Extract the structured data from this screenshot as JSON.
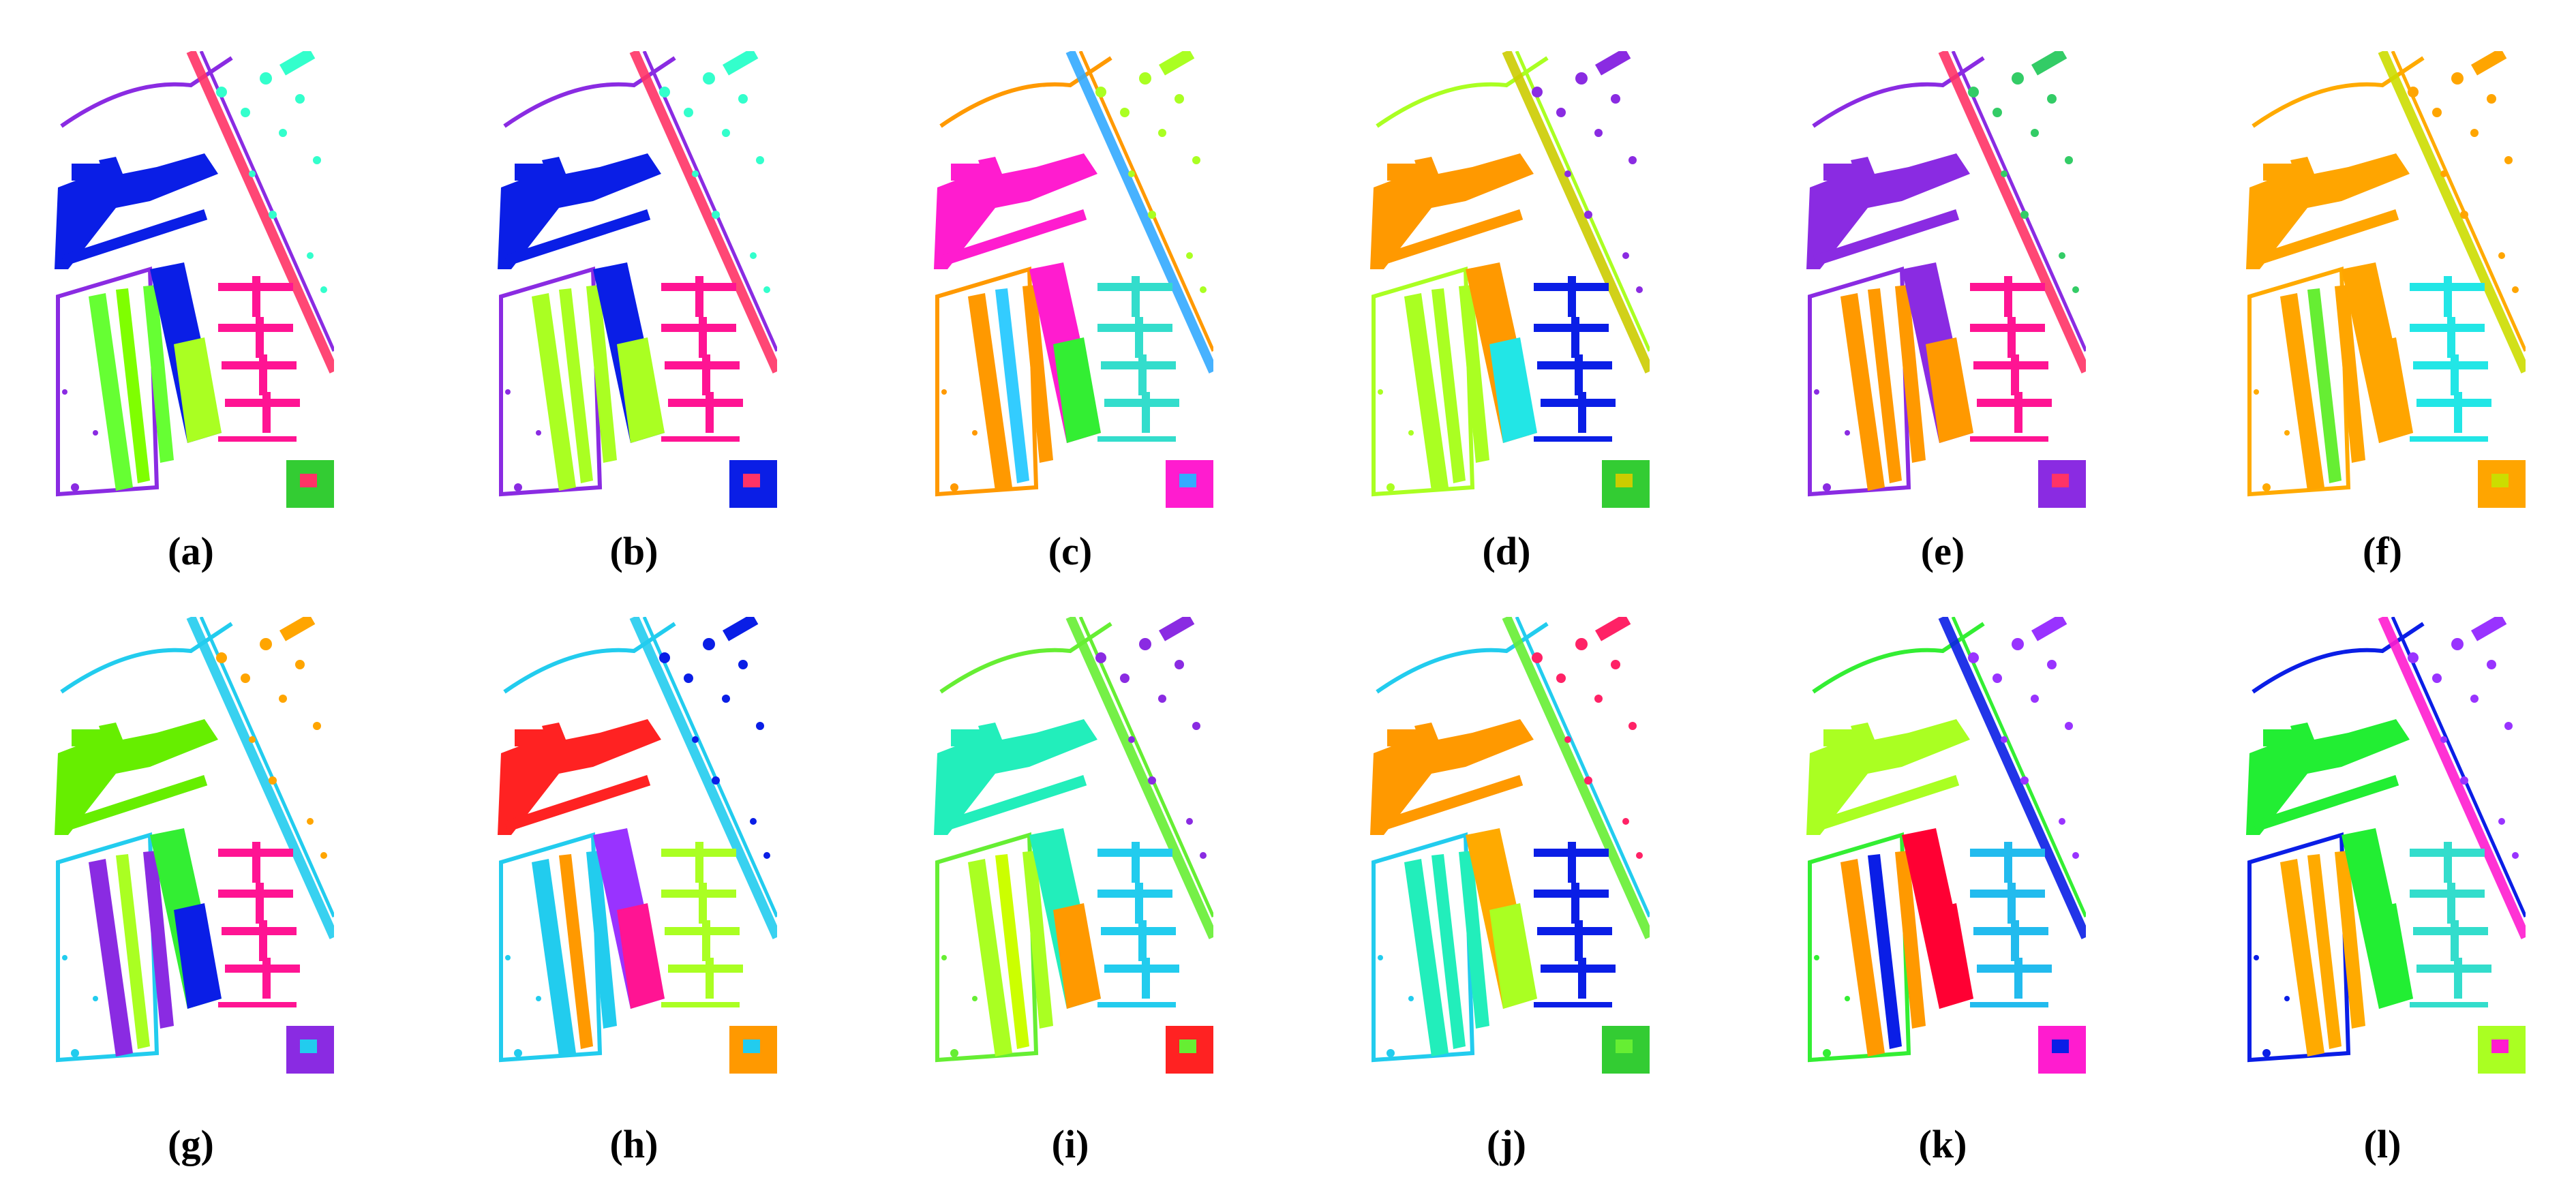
{
  "panels": [
    {
      "label": "a",
      "colors": {
        "outline": "#8a2be2",
        "building": "#0a1ee6",
        "lawn": "#7fff00",
        "strip": "#66ff33",
        "tall": "#0a1ee6",
        "lower": "#aaff22",
        "piers": "#ff1493",
        "corner": "#33cc33",
        "diag": "#ff3366",
        "dots": "#33ffcc"
      }
    },
    {
      "label": "b",
      "colors": {
        "outline": "#8a2be2",
        "building": "#0a1ee6",
        "lawn": "#aaff22",
        "strip": "#aaff22",
        "tall": "#0a1ee6",
        "lower": "#aaff22",
        "piers": "#ff1493",
        "corner": "#0a1ee6",
        "diag": "#ff3366",
        "dots": "#33ffcc"
      }
    },
    {
      "label": "c",
      "colors": {
        "outline": "#ff9900",
        "building": "#ff1ccf",
        "lawn": "#33ccff",
        "strip": "#ff9900",
        "tall": "#ff1ccf",
        "lower": "#33ee33",
        "piers": "#33ddcc",
        "corner": "#ff1ccf",
        "diag": "#33aaff",
        "dots": "#aaff22"
      }
    },
    {
      "label": "d",
      "colors": {
        "outline": "#aaff22",
        "building": "#ff9900",
        "lawn": "#aaff22",
        "strip": "#aaff22",
        "tall": "#ff9900",
        "lower": "#22e6e6",
        "piers": "#0a1ee6",
        "corner": "#33cc33",
        "diag": "#cccc00",
        "dots": "#8a2be2"
      }
    },
    {
      "label": "e",
      "colors": {
        "outline": "#8a2be2",
        "building": "#8a2be2",
        "lawn": "#ff9900",
        "strip": "#ff9900",
        "tall": "#8a2be2",
        "lower": "#ff9900",
        "piers": "#ff1493",
        "corner": "#8a2be2",
        "diag": "#ff3366",
        "dots": "#33cc66"
      }
    },
    {
      "label": "f",
      "colors": {
        "outline": "#ffaa00",
        "building": "#ffa500",
        "lawn": "#66ee33",
        "strip": "#ffa500",
        "tall": "#ffa500",
        "lower": "#ffa500",
        "piers": "#22e6e6",
        "corner": "#ffa500",
        "diag": "#ccdd00",
        "dots": "#ffa500"
      }
    },
    {
      "label": "g",
      "colors": {
        "outline": "#22ccee",
        "building": "#66ee00",
        "lawn": "#aaff22",
        "strip": "#8a2be2",
        "tall": "#33ee33",
        "lower": "#0a1ee6",
        "piers": "#ff1493",
        "corner": "#8a2be2",
        "diag": "#22ccee",
        "dots": "#ffa500"
      }
    },
    {
      "label": "h",
      "colors": {
        "outline": "#22ccee",
        "building": "#ff2222",
        "lawn": "#ff9900",
        "strip": "#22ccee",
        "tall": "#9933ff",
        "lower": "#ff1493",
        "piers": "#aaff22",
        "corner": "#ff9900",
        "diag": "#22ccee",
        "dots": "#0a1ee6"
      }
    },
    {
      "label": "i",
      "colors": {
        "outline": "#66ee33",
        "building": "#22eebb",
        "lawn": "#ccff00",
        "strip": "#aaff22",
        "tall": "#22eebb",
        "lower": "#ff9900",
        "piers": "#22ccee",
        "corner": "#ff2222",
        "diag": "#66ee33",
        "dots": "#8a2be2"
      }
    },
    {
      "label": "j",
      "colors": {
        "outline": "#22ccee",
        "building": "#ff9900",
        "lawn": "#22eebb",
        "strip": "#22eebb",
        "tall": "#ffaa00",
        "lower": "#aaff22",
        "piers": "#0a1ee6",
        "corner": "#33cc33",
        "diag": "#66ee33",
        "dots": "#ff2266"
      }
    },
    {
      "label": "k",
      "colors": {
        "outline": "#33ee33",
        "building": "#aaff22",
        "lawn": "#0a1ee6",
        "strip": "#ff9900",
        "tall": "#ff0033",
        "lower": "#ff0033",
        "piers": "#22bbee",
        "corner": "#ff1ccf",
        "diag": "#0a1ee6",
        "dots": "#9933ff"
      }
    },
    {
      "label": "l",
      "colors": {
        "outline": "#0a1ee6",
        "building": "#22ee33",
        "lawn": "#ffaa00",
        "strip": "#ffaa00",
        "tall": "#22ee33",
        "lower": "#22ee33",
        "piers": "#33ddcc",
        "corner": "#aaff22",
        "diag": "#ff1ccf",
        "dots": "#9933ff"
      }
    }
  ]
}
